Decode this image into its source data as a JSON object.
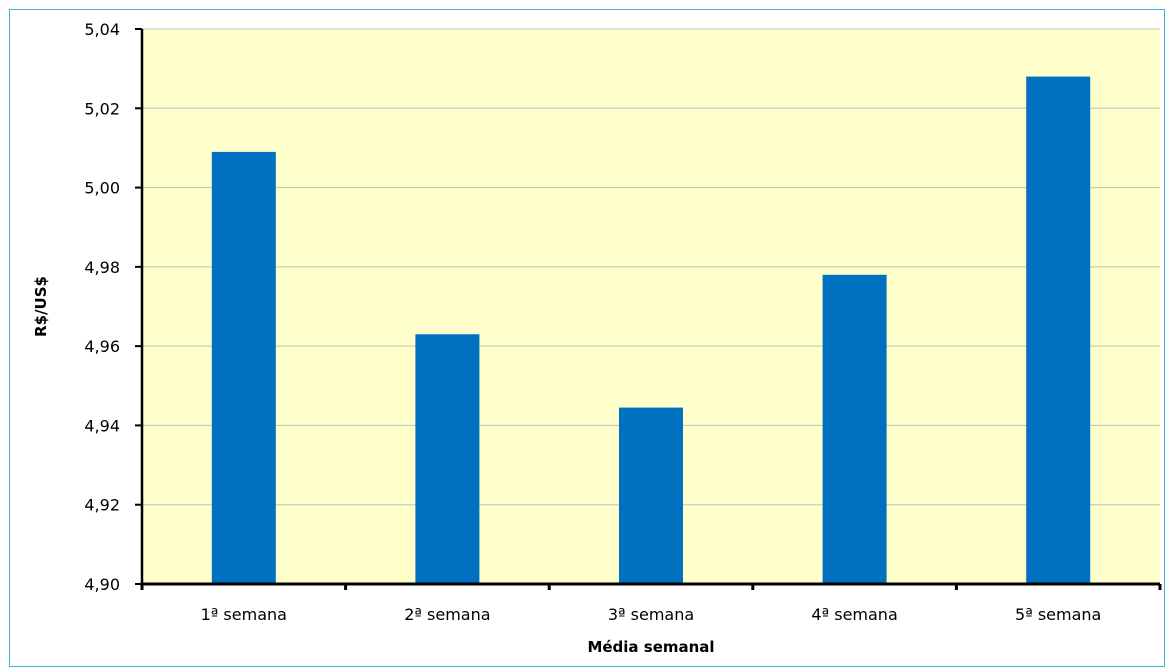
{
  "chart_data": {
    "type": "bar",
    "title": "",
    "xlabel": "Média semanal",
    "ylabel": "R$/US$",
    "categories": [
      "1ª semana",
      "2ª semana",
      "3ª semana",
      "4ª semana",
      "5ª semana"
    ],
    "values": [
      5.009,
      4.963,
      4.9445,
      4.978,
      5.028
    ],
    "ylim": [
      4.9,
      5.04
    ],
    "yticks": [
      4.9,
      4.92,
      4.94,
      4.96,
      4.98,
      5.0,
      5.02,
      5.04
    ],
    "ytick_labels": [
      "4,90",
      "4,92",
      "4,94",
      "4,96",
      "4,98",
      "5,00",
      "5,02",
      "5,04"
    ],
    "grid": true,
    "colors": {
      "bar": "#0070c0",
      "plot_bg": "#ffffcc",
      "grid": "#c0c0c0",
      "frame_border": "#3fb3d9"
    }
  }
}
